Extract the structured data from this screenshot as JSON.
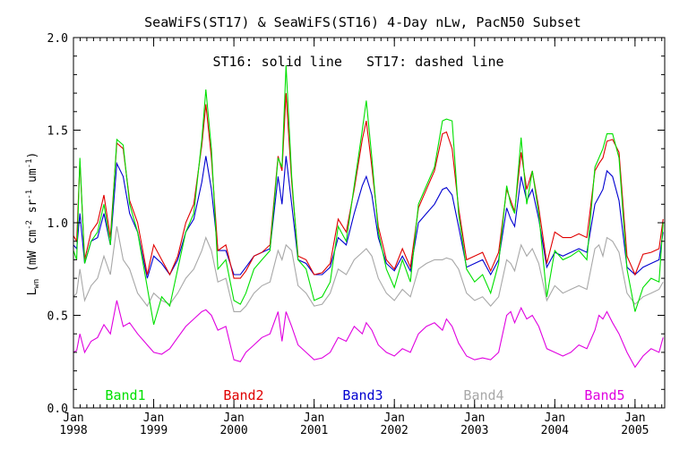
{
  "chart_data": {
    "type": "line",
    "title": "SeaWiFS(ST17) & SeaWiFS(ST16) 4-Day nLw, PacN50 Subset",
    "annotation": "ST16: solid line   ST17: dashed line",
    "ylabel": {
      "main": "L",
      "sub": "wn",
      "units_a": " (mW cm",
      "exp1": "-2",
      "units_b": " sr",
      "exp2": "-1",
      "units_c": " um",
      "exp3": "-1",
      "units_d": ")"
    },
    "ylim": [
      0,
      2.0
    ],
    "y_ticks": [
      "0.0",
      "0.5",
      "1.0",
      "1.5",
      "2.0"
    ],
    "xlim": [
      1998.0,
      2005.37
    ],
    "x_ticks": [
      {
        "month": "Jan",
        "year": "1998"
      },
      {
        "month": "Jan",
        "year": "1999"
      },
      {
        "month": "Jan",
        "year": "2000"
      },
      {
        "month": "Jan",
        "year": "2001"
      },
      {
        "month": "Jan",
        "year": "2002"
      },
      {
        "month": "Jan",
        "year": "2003"
      },
      {
        "month": "Jan",
        "year": "2004"
      },
      {
        "month": "Jan",
        "year": "2005"
      }
    ],
    "grid": false,
    "legend_placement": "bottom",
    "series": [
      {
        "name": "Band1",
        "color": "#00e000",
        "x": [
          1998.0,
          1998.04,
          1998.08,
          1998.14,
          1998.22,
          1998.3,
          1998.38,
          1998.46,
          1998.54,
          1998.62,
          1998.7,
          1998.8,
          1998.92,
          1999.0,
          1999.1,
          1999.2,
          1999.3,
          1999.4,
          1999.5,
          1999.6,
          1999.65,
          1999.72,
          1999.8,
          1999.9,
          2000.0,
          2000.08,
          2000.15,
          2000.25,
          2000.35,
          2000.45,
          2000.55,
          2000.6,
          2000.65,
          2000.72,
          2000.8,
          2000.9,
          2001.0,
          2001.1,
          2001.2,
          2001.3,
          2001.4,
          2001.5,
          2001.6,
          2001.65,
          2001.72,
          2001.8,
          2001.9,
          2002.0,
          2002.1,
          2002.2,
          2002.3,
          2002.4,
          2002.5,
          2002.6,
          2002.65,
          2002.72,
          2002.8,
          2002.9,
          2003.0,
          2003.1,
          2003.2,
          2003.3,
          2003.4,
          2003.45,
          2003.5,
          2003.58,
          2003.65,
          2003.72,
          2003.8,
          2003.9,
          2004.0,
          2004.1,
          2004.2,
          2004.3,
          2004.4,
          2004.5,
          2004.55,
          2004.6,
          2004.65,
          2004.72,
          2004.8,
          2004.9,
          2005.0,
          2005.1,
          2005.2,
          2005.3,
          2005.35
        ],
        "y": [
          0.85,
          0.8,
          1.35,
          0.78,
          0.9,
          0.95,
          1.1,
          0.88,
          1.45,
          1.42,
          1.1,
          0.95,
          0.65,
          0.45,
          0.6,
          0.55,
          0.75,
          0.95,
          1.05,
          1.45,
          1.72,
          1.4,
          0.75,
          0.8,
          0.58,
          0.56,
          0.62,
          0.75,
          0.8,
          0.85,
          1.35,
          1.3,
          1.85,
          1.25,
          0.8,
          0.75,
          0.58,
          0.6,
          0.68,
          0.98,
          0.9,
          1.2,
          1.5,
          1.66,
          1.35,
          0.95,
          0.75,
          0.65,
          0.8,
          0.68,
          1.1,
          1.2,
          1.3,
          1.55,
          1.56,
          1.55,
          1.05,
          0.75,
          0.68,
          0.72,
          0.62,
          0.78,
          1.2,
          1.1,
          1.05,
          1.46,
          1.1,
          1.28,
          1.05,
          0.6,
          0.85,
          0.8,
          0.82,
          0.85,
          0.8,
          1.3,
          1.35,
          1.4,
          1.48,
          1.48,
          1.35,
          0.75,
          0.52,
          0.65,
          0.7,
          0.68,
          1.0
        ]
      },
      {
        "name": "Band2",
        "color": "#e00000",
        "x": [
          1998.0,
          1998.04,
          1998.08,
          1998.14,
          1998.22,
          1998.3,
          1998.38,
          1998.46,
          1998.54,
          1998.62,
          1998.7,
          1998.8,
          1998.92,
          1999.0,
          1999.1,
          1999.2,
          1999.3,
          1999.4,
          1999.5,
          1999.6,
          1999.65,
          1999.72,
          1999.8,
          1999.9,
          2000.0,
          2000.08,
          2000.15,
          2000.25,
          2000.35,
          2000.45,
          2000.55,
          2000.6,
          2000.65,
          2000.72,
          2000.8,
          2000.9,
          2001.0,
          2001.1,
          2001.2,
          2001.3,
          2001.4,
          2001.5,
          2001.6,
          2001.65,
          2001.72,
          2001.8,
          2001.9,
          2002.0,
          2002.1,
          2002.2,
          2002.3,
          2002.4,
          2002.5,
          2002.6,
          2002.65,
          2002.72,
          2002.8,
          2002.9,
          2003.0,
          2003.1,
          2003.2,
          2003.3,
          2003.4,
          2003.45,
          2003.5,
          2003.58,
          2003.65,
          2003.72,
          2003.8,
          2003.9,
          2004.0,
          2004.1,
          2004.2,
          2004.3,
          2004.4,
          2004.5,
          2004.55,
          2004.6,
          2004.65,
          2004.72,
          2004.8,
          2004.9,
          2005.0,
          2005.1,
          2005.2,
          2005.3,
          2005.35
        ],
        "y": [
          0.93,
          0.9,
          1.33,
          0.8,
          0.95,
          1.0,
          1.15,
          0.92,
          1.43,
          1.4,
          1.12,
          1.0,
          0.72,
          0.88,
          0.8,
          0.72,
          0.82,
          1.0,
          1.1,
          1.42,
          1.64,
          1.35,
          0.85,
          0.88,
          0.7,
          0.7,
          0.74,
          0.82,
          0.84,
          0.88,
          1.36,
          1.28,
          1.7,
          1.22,
          0.82,
          0.8,
          0.72,
          0.73,
          0.78,
          1.02,
          0.95,
          1.18,
          1.45,
          1.55,
          1.3,
          0.98,
          0.8,
          0.75,
          0.86,
          0.76,
          1.08,
          1.18,
          1.28,
          1.48,
          1.49,
          1.4,
          1.08,
          0.8,
          0.82,
          0.84,
          0.74,
          0.84,
          1.18,
          1.12,
          1.06,
          1.38,
          1.18,
          1.28,
          1.08,
          0.78,
          0.95,
          0.92,
          0.92,
          0.94,
          0.92,
          1.28,
          1.32,
          1.35,
          1.44,
          1.45,
          1.38,
          0.82,
          0.72,
          0.83,
          0.84,
          0.86,
          1.02
        ]
      },
      {
        "name": "Band3",
        "color": "#0000d0",
        "x": [
          1998.0,
          1998.04,
          1998.08,
          1998.14,
          1998.22,
          1998.3,
          1998.38,
          1998.46,
          1998.54,
          1998.62,
          1998.7,
          1998.8,
          1998.92,
          1999.0,
          1999.1,
          1999.2,
          1999.3,
          1999.4,
          1999.5,
          1999.6,
          1999.65,
          1999.72,
          1999.8,
          1999.9,
          2000.0,
          2000.08,
          2000.15,
          2000.25,
          2000.35,
          2000.45,
          2000.55,
          2000.6,
          2000.65,
          2000.72,
          2000.8,
          2000.9,
          2001.0,
          2001.1,
          2001.2,
          2001.3,
          2001.4,
          2001.5,
          2001.6,
          2001.65,
          2001.72,
          2001.8,
          2001.9,
          2002.0,
          2002.1,
          2002.2,
          2002.3,
          2002.4,
          2002.5,
          2002.6,
          2002.65,
          2002.72,
          2002.8,
          2002.9,
          2003.0,
          2003.1,
          2003.2,
          2003.3,
          2003.4,
          2003.45,
          2003.5,
          2003.58,
          2003.65,
          2003.72,
          2003.8,
          2003.9,
          2004.0,
          2004.1,
          2004.2,
          2004.3,
          2004.4,
          2004.5,
          2004.55,
          2004.6,
          2004.65,
          2004.72,
          2004.8,
          2004.9,
          2005.0,
          2005.1,
          2005.2,
          2005.3,
          2005.35
        ],
        "y": [
          0.88,
          0.86,
          1.05,
          0.78,
          0.9,
          0.92,
          1.05,
          0.88,
          1.32,
          1.25,
          1.05,
          0.95,
          0.7,
          0.82,
          0.78,
          0.72,
          0.8,
          0.95,
          1.02,
          1.22,
          1.36,
          1.18,
          0.85,
          0.85,
          0.72,
          0.72,
          0.76,
          0.82,
          0.84,
          0.86,
          1.25,
          1.1,
          1.36,
          1.1,
          0.8,
          0.78,
          0.72,
          0.72,
          0.76,
          0.92,
          0.88,
          1.05,
          1.2,
          1.25,
          1.15,
          0.92,
          0.78,
          0.74,
          0.82,
          0.74,
          1.0,
          1.05,
          1.1,
          1.18,
          1.19,
          1.15,
          0.98,
          0.76,
          0.78,
          0.8,
          0.72,
          0.8,
          1.08,
          1.02,
          0.98,
          1.25,
          1.12,
          1.18,
          1.02,
          0.76,
          0.84,
          0.82,
          0.84,
          0.86,
          0.84,
          1.1,
          1.14,
          1.18,
          1.28,
          1.25,
          1.12,
          0.76,
          0.72,
          0.76,
          0.78,
          0.8,
          0.95
        ]
      },
      {
        "name": "Band4",
        "color": "#a8a8a8",
        "x": [
          1998.0,
          1998.04,
          1998.08,
          1998.14,
          1998.22,
          1998.3,
          1998.38,
          1998.46,
          1998.54,
          1998.62,
          1998.7,
          1998.8,
          1998.92,
          1999.0,
          1999.1,
          1999.2,
          1999.3,
          1999.4,
          1999.5,
          1999.6,
          1999.65,
          1999.72,
          1999.8,
          1999.9,
          2000.0,
          2000.08,
          2000.15,
          2000.25,
          2000.35,
          2000.45,
          2000.55,
          2000.6,
          2000.65,
          2000.72,
          2000.8,
          2000.9,
          2001.0,
          2001.1,
          2001.2,
          2001.3,
          2001.4,
          2001.5,
          2001.6,
          2001.65,
          2001.72,
          2001.8,
          2001.9,
          2002.0,
          2002.1,
          2002.2,
          2002.3,
          2002.4,
          2002.5,
          2002.6,
          2002.65,
          2002.72,
          2002.8,
          2002.9,
          2003.0,
          2003.1,
          2003.2,
          2003.3,
          2003.4,
          2003.45,
          2003.5,
          2003.58,
          2003.65,
          2003.72,
          2003.8,
          2003.9,
          2004.0,
          2004.1,
          2004.2,
          2004.3,
          2004.4,
          2004.5,
          2004.55,
          2004.6,
          2004.65,
          2004.72,
          2004.8,
          2004.9,
          2005.0,
          2005.1,
          2005.2,
          2005.3,
          2005.35
        ],
        "y": [
          0.6,
          0.62,
          0.75,
          0.58,
          0.66,
          0.7,
          0.82,
          0.72,
          0.98,
          0.8,
          0.75,
          0.62,
          0.55,
          0.62,
          0.58,
          0.56,
          0.62,
          0.7,
          0.75,
          0.85,
          0.92,
          0.85,
          0.68,
          0.7,
          0.52,
          0.52,
          0.55,
          0.62,
          0.66,
          0.68,
          0.85,
          0.8,
          0.88,
          0.85,
          0.66,
          0.62,
          0.55,
          0.56,
          0.62,
          0.75,
          0.72,
          0.8,
          0.84,
          0.86,
          0.82,
          0.7,
          0.62,
          0.58,
          0.64,
          0.6,
          0.75,
          0.78,
          0.8,
          0.8,
          0.81,
          0.8,
          0.75,
          0.62,
          0.58,
          0.6,
          0.55,
          0.6,
          0.8,
          0.78,
          0.74,
          0.88,
          0.82,
          0.86,
          0.78,
          0.58,
          0.66,
          0.62,
          0.64,
          0.66,
          0.64,
          0.86,
          0.88,
          0.82,
          0.92,
          0.9,
          0.84,
          0.62,
          0.56,
          0.6,
          0.62,
          0.64,
          0.68
        ]
      },
      {
        "name": "Band5",
        "color": "#e000e0",
        "x": [
          1998.0,
          1998.04,
          1998.08,
          1998.14,
          1998.22,
          1998.3,
          1998.38,
          1998.46,
          1998.54,
          1998.62,
          1998.7,
          1998.8,
          1998.92,
          1999.0,
          1999.1,
          1999.2,
          1999.3,
          1999.4,
          1999.5,
          1999.6,
          1999.65,
          1999.72,
          1999.8,
          1999.9,
          2000.0,
          2000.08,
          2000.15,
          2000.25,
          2000.35,
          2000.45,
          2000.55,
          2000.6,
          2000.65,
          2000.72,
          2000.8,
          2000.9,
          2001.0,
          2001.1,
          2001.2,
          2001.3,
          2001.4,
          2001.5,
          2001.6,
          2001.65,
          2001.72,
          2001.8,
          2001.9,
          2002.0,
          2002.1,
          2002.2,
          2002.3,
          2002.4,
          2002.5,
          2002.6,
          2002.65,
          2002.72,
          2002.8,
          2002.9,
          2003.0,
          2003.1,
          2003.2,
          2003.3,
          2003.4,
          2003.45,
          2003.5,
          2003.58,
          2003.65,
          2003.72,
          2003.8,
          2003.9,
          2004.0,
          2004.1,
          2004.2,
          2004.3,
          2004.4,
          2004.5,
          2004.55,
          2004.6,
          2004.65,
          2004.72,
          2004.8,
          2004.9,
          2005.0,
          2005.1,
          2005.2,
          2005.3,
          2005.35
        ],
        "y": [
          0.3,
          0.31,
          0.4,
          0.3,
          0.36,
          0.38,
          0.45,
          0.4,
          0.58,
          0.44,
          0.46,
          0.4,
          0.34,
          0.3,
          0.29,
          0.32,
          0.38,
          0.44,
          0.48,
          0.52,
          0.53,
          0.5,
          0.42,
          0.44,
          0.26,
          0.25,
          0.3,
          0.34,
          0.38,
          0.4,
          0.52,
          0.36,
          0.52,
          0.44,
          0.34,
          0.3,
          0.26,
          0.27,
          0.3,
          0.38,
          0.36,
          0.44,
          0.4,
          0.46,
          0.42,
          0.34,
          0.3,
          0.28,
          0.32,
          0.3,
          0.4,
          0.44,
          0.46,
          0.42,
          0.48,
          0.44,
          0.35,
          0.28,
          0.26,
          0.27,
          0.26,
          0.3,
          0.5,
          0.52,
          0.46,
          0.54,
          0.48,
          0.5,
          0.44,
          0.32,
          0.3,
          0.28,
          0.3,
          0.34,
          0.32,
          0.42,
          0.5,
          0.48,
          0.52,
          0.46,
          0.4,
          0.3,
          0.22,
          0.28,
          0.32,
          0.3,
          0.38
        ]
      }
    ]
  }
}
